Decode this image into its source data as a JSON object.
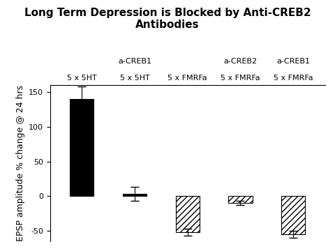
{
  "chart_data": {
    "type": "bar",
    "title": "Long Term Depression is Blocked by Anti-CREB2 Antibodies",
    "y_label": "EPSP amplitude % change @ 24 hrs",
    "categories": [
      "5 x 5HT",
      "5 x 5HT",
      "5 x FMRFa",
      "5 x FMRFa",
      "5 x FMRFa"
    ],
    "values": [
      140,
      3,
      -52,
      -10,
      -55
    ],
    "errors": [
      18,
      10,
      5,
      3,
      5
    ],
    "annotations": [
      null,
      "a-CREB1",
      null,
      "a-CREB2",
      "a-CREB1"
    ],
    "colors": [
      "#000000",
      "#000000",
      "#ffffff",
      "#ffffff",
      "#ffffff"
    ],
    "ylim": [
      -65,
      160
    ],
    "yticks": [
      -50,
      0,
      50,
      100,
      150
    ],
    "grid": false
  }
}
